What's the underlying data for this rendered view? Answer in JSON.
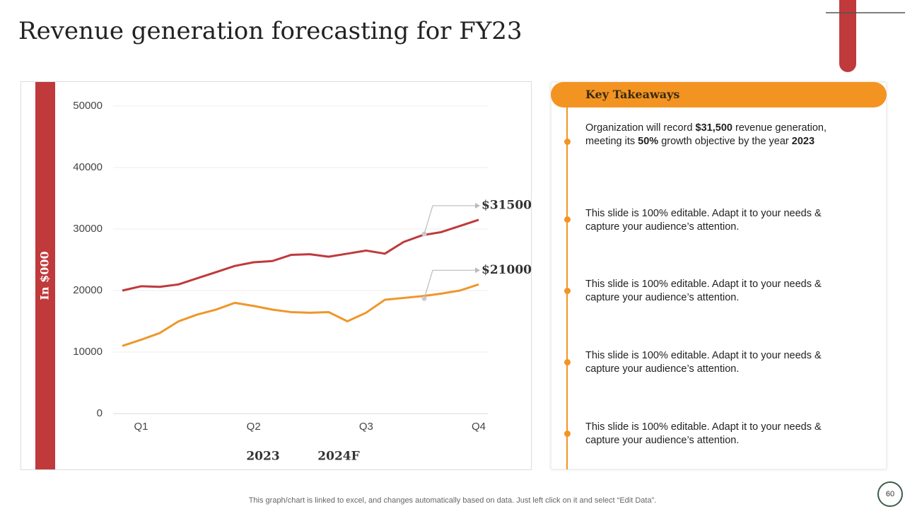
{
  "slide": {
    "title": "Revenue generation forecasting for FY23",
    "panel_title": "Key Takeaways",
    "takeaways": [
      [
        "Organization will record ",
        "$31,500",
        " revenue generation, meeting its ",
        "50%",
        " growth objective by the year ",
        "2023"
      ],
      [
        "This slide is 100% editable. Adapt it to your needs & capture your audience’s attention."
      ],
      [
        "This slide is 100% editable. Adapt it to your needs & capture your audience’s attention."
      ],
      [
        "This slide is 100% editable. Adapt it to your needs & capture your audience’s attention."
      ],
      [
        "This slide is 100% editable. Adapt it to your needs & capture your audience’s attention."
      ]
    ],
    "footnote": "This graph/chart is linked to excel,  and changes automatically based on data. Just left click on it and select “Edit Data”.",
    "page_number": "60"
  },
  "chart_data": {
    "type": "line",
    "ylabel": "In $000",
    "categories": [
      null,
      "Q1",
      null,
      null,
      null,
      null,
      null,
      "Q2",
      null,
      null,
      null,
      null,
      null,
      "Q3",
      null,
      null,
      null,
      null,
      null,
      "Q4"
    ],
    "series": [
      {
        "name": "2023",
        "color": "#c0393b",
        "values": [
          20000,
          20700,
          20600,
          21000,
          22000,
          23000,
          24000,
          24600,
          24800,
          25800,
          25900,
          25500,
          26000,
          26500,
          26000,
          27900,
          29000,
          29500,
          30500,
          31500
        ],
        "value_labels": [
          null,
          null,
          null,
          null,
          null,
          null,
          null,
          null,
          null,
          null,
          null,
          null,
          null,
          null,
          null,
          null,
          null,
          null,
          null,
          "$31500"
        ]
      },
      {
        "name": "2024F",
        "color": "#f0962a",
        "values": [
          11000,
          12000,
          13100,
          15000,
          16100,
          16900,
          18000,
          17500,
          16900,
          16500,
          16400,
          16500,
          15000,
          16400,
          18500,
          18800,
          19100,
          19500,
          20000,
          21000
        ],
        "value_labels": [
          null,
          null,
          null,
          null,
          null,
          null,
          null,
          null,
          null,
          null,
          null,
          null,
          null,
          null,
          null,
          null,
          null,
          null,
          null,
          "$21000"
        ]
      }
    ],
    "ylim": [
      0,
      50000
    ],
    "yticks": [
      0,
      10000,
      20000,
      30000,
      40000,
      50000
    ],
    "grid": true
  }
}
